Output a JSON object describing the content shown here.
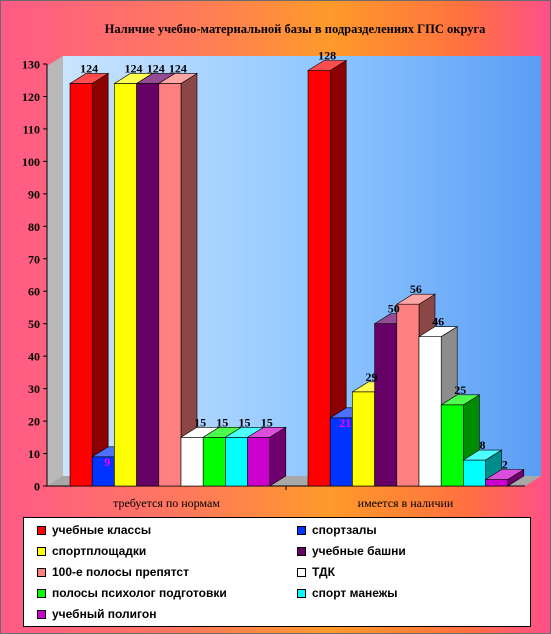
{
  "chart_data": {
    "type": "bar",
    "title": "Наличие учебно-материальной базы в подразделениях ГПС округа",
    "categories": [
      "требуется по нормам",
      "имеется в наличии"
    ],
    "ylim": [
      0,
      130
    ],
    "yticks": [
      0,
      10,
      20,
      30,
      40,
      50,
      60,
      70,
      80,
      90,
      100,
      110,
      120,
      130
    ],
    "grid": false,
    "legend_position": "bottom",
    "series": [
      {
        "name": "учебные классы",
        "color": "#ff0000",
        "values": [
          124,
          128
        ],
        "labels": [
          "124",
          "128"
        ]
      },
      {
        "name": "спортзалы",
        "color": "#0033ff",
        "values": [
          9,
          21
        ],
        "labels": [
          "9",
          "21"
        ]
      },
      {
        "name": "спортплощадки",
        "color": "#ffff00",
        "values": [
          124,
          29
        ],
        "labels": [
          "124",
          "29"
        ]
      },
      {
        "name": "учебные башни",
        "color": "#660066",
        "values": [
          124,
          50
        ],
        "labels": [
          "124",
          "50"
        ]
      },
      {
        "name": "100-е полосы препятст",
        "color": "#ff8080",
        "values": [
          124,
          56
        ],
        "labels": [
          "124",
          "56"
        ]
      },
      {
        "name": "ТДК",
        "color": "#ffffff",
        "values": [
          15,
          46
        ],
        "labels": [
          "15",
          "46"
        ]
      },
      {
        "name": "полосы психолог подготовки",
        "color": "#00ff00",
        "values": [
          15,
          25
        ],
        "labels": [
          "15",
          "25"
        ]
      },
      {
        "name": "спорт манежы",
        "color": "#00ffff",
        "values": [
          15,
          8
        ],
        "labels": [
          "15",
          "8"
        ]
      },
      {
        "name": "учебный полигон",
        "color": "#cc00cc",
        "values": [
          15,
          2
        ],
        "labels": [
          "15",
          "2"
        ]
      }
    ]
  }
}
